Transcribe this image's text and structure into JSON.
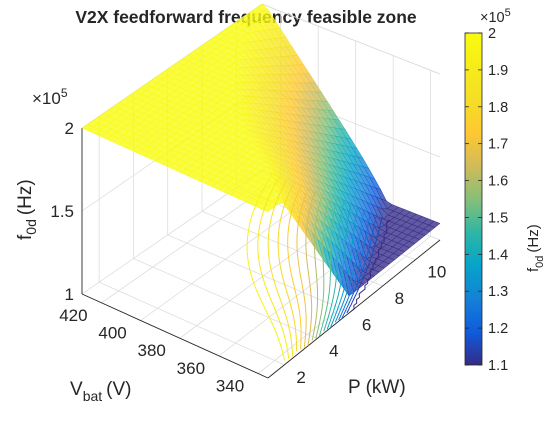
{
  "chart_data": {
    "type": "surface",
    "title": "V2X feedforward frequency feasible zone",
    "xlabel": {
      "base": "P (kW)",
      "text": "P (kW)"
    },
    "ylabel": {
      "main": "V",
      "sub": "bat",
      "unit": "(V)"
    },
    "zlabel": {
      "main": "f",
      "sub": "0d",
      "unit": "(Hz)"
    },
    "x_ticks": [
      "2",
      "4",
      "6",
      "8",
      "10"
    ],
    "y_ticks": [
      "420",
      "400",
      "380",
      "360",
      "340"
    ],
    "z_ticks": [
      "1",
      "1.5",
      "2"
    ],
    "z_exponent": {
      "base": "×10",
      "exp": "5"
    },
    "xlim": [
      1,
      11.5
    ],
    "ylim": [
      335,
      430
    ],
    "zlim": [
      1.0,
      2.0
    ],
    "colorbar": {
      "label": {
        "main": "f",
        "sub": "0d",
        "unit": "(Hz)"
      },
      "ticks": [
        "2",
        "1.9",
        "1.8",
        "1.7",
        "1.6",
        "1.5",
        "1.4",
        "1.3",
        "1.2",
        "1.1"
      ],
      "range": [
        1.1,
        2.0
      ],
      "exponent": {
        "base": "×10",
        "exp": "5"
      },
      "colormap": "parula"
    },
    "surface": {
      "description_values": "f0d clipped at 2e5 Hz for high Vbat / low P, decreasing toward ~1.1e5 Hz at low Vbat and high P",
      "z_max": 2.0,
      "z_min": 1.1,
      "contour_levels": [
        1.1,
        1.15,
        1.2,
        1.25,
        1.3,
        1.35,
        1.4,
        1.45,
        1.5,
        1.55,
        1.6,
        1.65,
        1.7,
        1.75,
        1.8,
        1.85,
        1.9,
        1.95
      ]
    },
    "grid": true
  }
}
